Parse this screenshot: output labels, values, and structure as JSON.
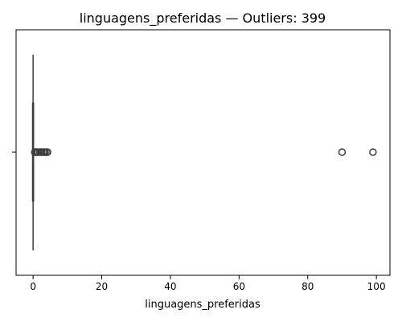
{
  "chart_data": {
    "type": "box",
    "title": "linguagens_preferidas — Outliers: 399",
    "xlabel": "linguagens_preferidas",
    "ylabel": "",
    "orientation": "horizontal",
    "xlim": [
      -4.95,
      103.95
    ],
    "xticks": [
      0,
      20,
      40,
      60,
      80,
      100
    ],
    "xtick_labels": [
      "0",
      "20",
      "40",
      "60",
      "80",
      "100"
    ],
    "grid": false,
    "box": {
      "min": 0,
      "q1": 0,
      "median": 0,
      "q3": 0,
      "max": 0
    },
    "outliers": [
      0.5,
      0.8,
      1,
      1.2,
      1.5,
      2,
      2.3,
      2.5,
      3,
      3.2,
      3.5,
      4,
      4.2,
      90,
      99
    ]
  },
  "colors": {
    "box_line": "#3f3f3f",
    "axis": "#000000",
    "text": "#000000",
    "outlier_edge": "#3f3f3f",
    "background": "#ffffff"
  }
}
